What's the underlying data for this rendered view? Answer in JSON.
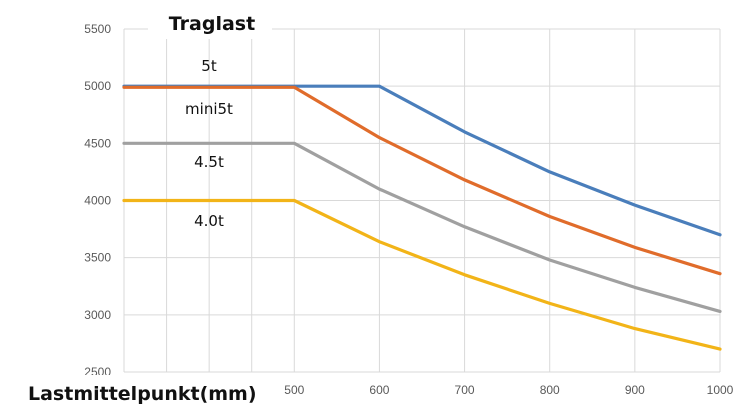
{
  "chart_data": {
    "type": "line",
    "title": "Traglast",
    "xlabel": "Lastmittelpunkt(mm)",
    "ylabel": "",
    "x_ticks": [
      "500",
      "600",
      "700",
      "800",
      "900",
      "1000"
    ],
    "y_ticks": [
      "2500",
      "3000",
      "3500",
      "4000",
      "4500",
      "5000",
      "5500"
    ],
    "xlim": [
      300,
      1000
    ],
    "ylim": [
      2500,
      5500
    ],
    "grid": true,
    "x": [
      300,
      500,
      600,
      700,
      800,
      900,
      1000
    ],
    "series": [
      {
        "name": "5t",
        "color": "#4a7ebb",
        "values": [
          5000,
          5000,
          5000,
          4600,
          4250,
          3960,
          3700
        ]
      },
      {
        "name": "mini5t",
        "color": "#e06c2b",
        "values": [
          4990,
          4990,
          4550,
          4180,
          3860,
          3590,
          3360
        ]
      },
      {
        "name": "4.5t",
        "color": "#a0a0a0",
        "values": [
          4500,
          4500,
          4100,
          3770,
          3480,
          3240,
          3030
        ]
      },
      {
        "name": "4.0t",
        "color": "#f2b418",
        "values": [
          4000,
          4000,
          3640,
          3350,
          3100,
          2880,
          2700
        ]
      }
    ]
  }
}
